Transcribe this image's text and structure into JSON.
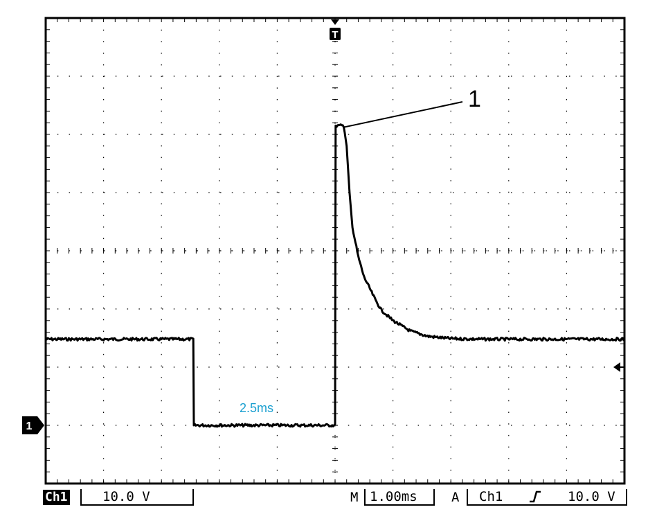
{
  "chart_data": {
    "type": "line",
    "title": "",
    "xlabel": "",
    "ylabel": "",
    "divisions": {
      "x": 10,
      "y": 8
    },
    "grid": true,
    "channel_label": "Ch1",
    "volts_per_div": "10.0 V",
    "timebase_label": "M",
    "timebase": "1.00ms",
    "trigger_mode": "A",
    "trigger_source": "Ch1",
    "trigger_level": "10.0 V",
    "trigger_marker": "T",
    "channel_marker": "1",
    "annotation_duration": "2.5ms",
    "annotation_peak_label": "1",
    "x_unit": "div",
    "y_unit": "div",
    "series": [
      {
        "values": [
          [
            0,
            2.48
          ],
          [
            2.55,
            2.48
          ],
          [
            2.56,
            1.0
          ],
          [
            5.0,
            1.0
          ],
          [
            5.01,
            6.15
          ],
          [
            5.15,
            6.15
          ],
          [
            5.2,
            5.8
          ],
          [
            5.25,
            5.0
          ],
          [
            5.3,
            4.4
          ],
          [
            5.4,
            3.9
          ],
          [
            5.5,
            3.55
          ],
          [
            5.6,
            3.35
          ],
          [
            5.7,
            3.15
          ],
          [
            5.8,
            2.98
          ],
          [
            6.0,
            2.8
          ],
          [
            6.3,
            2.62
          ],
          [
            6.6,
            2.53
          ],
          [
            7.0,
            2.49
          ],
          [
            7.5,
            2.48
          ],
          [
            10.0,
            2.48
          ]
        ]
      }
    ],
    "colors": {
      "trace": "#000000",
      "annotation": "#1a9fd0",
      "grid": "#000000"
    }
  }
}
